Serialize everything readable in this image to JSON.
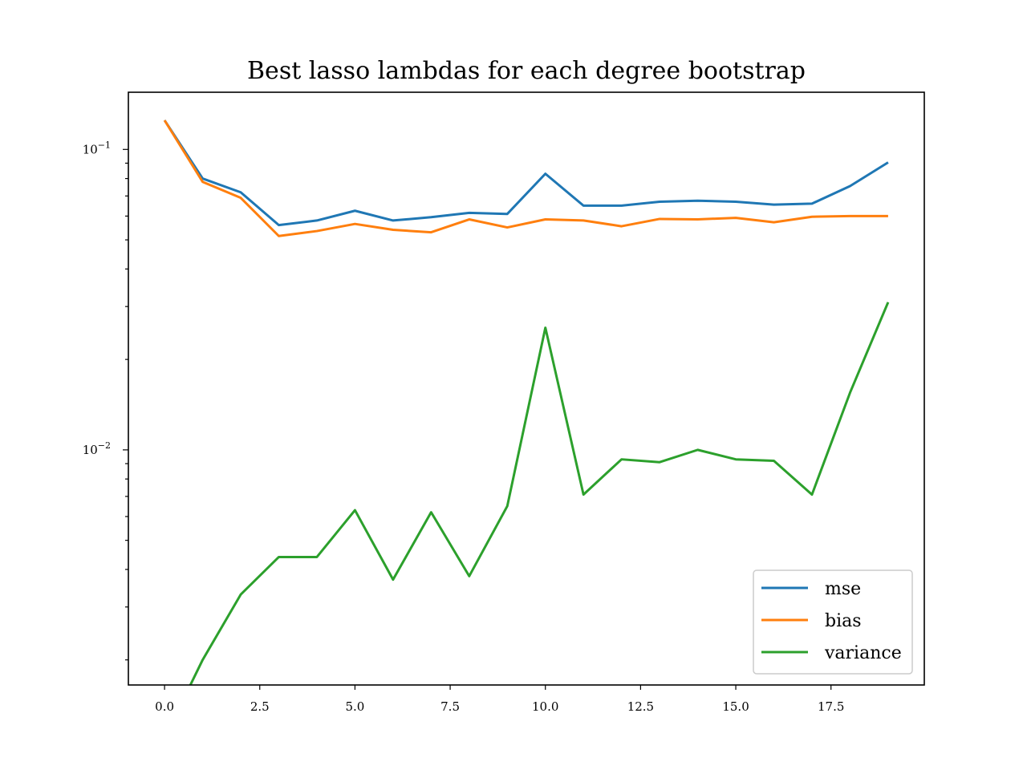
{
  "chart_data": {
    "type": "line",
    "title": "Best lasso lambdas for each degree bootstrap",
    "xlabel": "",
    "ylabel": "",
    "yscale": "log",
    "xlim": [
      -0.95,
      19.95
    ],
    "ylim": [
      0.00165,
      0.155
    ],
    "xticks": [
      0.0,
      2.5,
      5.0,
      7.5,
      10.0,
      12.5,
      15.0,
      17.5
    ],
    "xtick_labels": [
      "0.0",
      "2.5",
      "5.0",
      "7.5",
      "10.0",
      "12.5",
      "15.0",
      "17.5"
    ],
    "ytick_major": [
      0.1,
      0.01
    ],
    "ytick_major_labels": [
      {
        "base": "10",
        "exp": "−1"
      },
      {
        "base": "10",
        "exp": "−2"
      }
    ],
    "grid": false,
    "legend_position": "bottom-right",
    "x": [
      0,
      1,
      2,
      3,
      4,
      5,
      6,
      7,
      8,
      9,
      10,
      11,
      12,
      13,
      14,
      15,
      16,
      17,
      18,
      19
    ],
    "series": [
      {
        "name": "mse",
        "color": "#1f77b4",
        "values": [
          0.125,
          0.08,
          0.072,
          0.056,
          0.058,
          0.0625,
          0.058,
          0.0595,
          0.0615,
          0.061,
          0.083,
          0.065,
          0.065,
          0.067,
          0.0675,
          0.067,
          0.0655,
          0.066,
          0.0755,
          0.0905
        ]
      },
      {
        "name": "bias",
        "color": "#ff7f0e",
        "values": [
          0.125,
          0.078,
          0.069,
          0.0515,
          0.0535,
          0.0565,
          0.054,
          0.053,
          0.0585,
          0.055,
          0.0585,
          0.058,
          0.0555,
          0.0587,
          0.0585,
          0.0592,
          0.0572,
          0.0597,
          0.06,
          0.06
        ]
      },
      {
        "name": "variance",
        "color": "#2ca02c",
        "values": [
          0.0011,
          0.002,
          0.0033,
          0.0044,
          0.0044,
          0.0063,
          0.0037,
          0.0062,
          0.0038,
          0.0065,
          0.0255,
          0.0071,
          0.0093,
          0.0091,
          0.01,
          0.0093,
          0.0092,
          0.0071,
          0.0155,
          0.031
        ]
      }
    ]
  }
}
